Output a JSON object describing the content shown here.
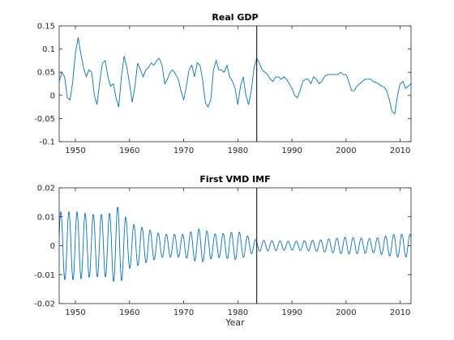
{
  "figure": {
    "background": "#ffffff"
  },
  "chart_data": [
    {
      "type": "line",
      "title": "Real GDP",
      "xlabel": "",
      "ylabel": "",
      "xlim": [
        1947,
        2012
      ],
      "ylim": [
        -0.1,
        0.15
      ],
      "xticks": [
        1950,
        1960,
        1970,
        1980,
        1990,
        2000,
        2010
      ],
      "yticks": [
        -0.1,
        -0.05,
        0,
        0.05,
        0.1,
        0.15
      ],
      "ytick_labels": [
        "-0.1",
        "-0.05",
        "0",
        "0.05",
        "0.1",
        "0.15"
      ],
      "grid": false,
      "legend": "none",
      "vline_x": 1983.5,
      "series": [
        {
          "color": "#0072bd",
          "x": [
            1947,
            1947.5,
            1948,
            1948.5,
            1949,
            1949.5,
            1950,
            1950.5,
            1951,
            1951.5,
            1952,
            1952.5,
            1953,
            1953.5,
            1954,
            1954.5,
            1955,
            1955.5,
            1956,
            1956.5,
            1957,
            1957.5,
            1958,
            1958.5,
            1959,
            1959.5,
            1960,
            1960.5,
            1961,
            1961.5,
            1962,
            1962.5,
            1963,
            1963.5,
            1964,
            1964.5,
            1965,
            1965.5,
            1966,
            1966.5,
            1967,
            1967.5,
            1968,
            1968.5,
            1969,
            1969.5,
            1970,
            1970.5,
            1971,
            1971.5,
            1972,
            1972.5,
            1973,
            1973.5,
            1974,
            1974.5,
            1975,
            1975.5,
            1976,
            1976.5,
            1977,
            1977.5,
            1978,
            1978.5,
            1979,
            1979.5,
            1980,
            1980.5,
            1981,
            1981.5,
            1982,
            1982.5,
            1983,
            1983.5,
            1984,
            1984.5,
            1985,
            1985.5,
            1986,
            1986.5,
            1987,
            1987.5,
            1988,
            1988.5,
            1989,
            1989.5,
            1990,
            1990.5,
            1991,
            1991.5,
            1992,
            1992.5,
            1993,
            1993.5,
            1994,
            1994.5,
            1995,
            1995.5,
            1996,
            1996.5,
            1997,
            1997.5,
            1998,
            1998.5,
            1999,
            1999.5,
            2000,
            2000.5,
            2001,
            2001.5,
            2002,
            2002.5,
            2003,
            2003.5,
            2004,
            2004.5,
            2005,
            2005.5,
            2006,
            2006.5,
            2007,
            2007.5,
            2008,
            2008.5,
            2009,
            2009.5,
            2010,
            2010.5,
            2011,
            2011.5,
            2012
          ],
          "y": [
            0.03,
            0.05,
            0.04,
            -0.005,
            -0.01,
            0.03,
            0.09,
            0.125,
            0.09,
            0.06,
            0.04,
            0.055,
            0.05,
            0.0,
            -0.02,
            0.03,
            0.07,
            0.075,
            0.04,
            0.02,
            0.025,
            -0.005,
            -0.025,
            0.04,
            0.085,
            0.06,
            0.025,
            -0.015,
            0.02,
            0.07,
            0.055,
            0.04,
            0.055,
            0.06,
            0.07,
            0.065,
            0.075,
            0.08,
            0.065,
            0.025,
            0.035,
            0.05,
            0.055,
            0.045,
            0.035,
            0.01,
            -0.01,
            0.02,
            0.055,
            0.065,
            0.04,
            0.07,
            0.065,
            0.035,
            -0.015,
            -0.025,
            -0.01,
            0.055,
            0.075,
            0.055,
            0.055,
            0.05,
            0.065,
            0.04,
            0.03,
            0.015,
            -0.02,
            0.02,
            0.04,
            0.0,
            -0.02,
            0.01,
            0.06,
            0.08,
            0.07,
            0.055,
            0.05,
            0.045,
            0.035,
            0.03,
            0.04,
            0.04,
            0.035,
            0.04,
            0.035,
            0.025,
            0.015,
            0.0,
            -0.005,
            0.01,
            0.03,
            0.035,
            0.035,
            0.025,
            0.04,
            0.035,
            0.025,
            0.03,
            0.04,
            0.045,
            0.045,
            0.045,
            0.045,
            0.045,
            0.05,
            0.045,
            0.045,
            0.03,
            0.01,
            0.01,
            0.02,
            0.025,
            0.03,
            0.035,
            0.035,
            0.035,
            0.03,
            0.028,
            0.025,
            0.02,
            0.018,
            0.01,
            -0.01,
            -0.035,
            -0.04,
            0.0,
            0.025,
            0.03,
            0.015,
            0.02,
            0.025
          ]
        }
      ]
    },
    {
      "type": "line",
      "title": "First VMD IMF",
      "xlabel": "Year",
      "ylabel": "",
      "xlim": [
        1947,
        2012
      ],
      "ylim": [
        -0.02,
        0.02
      ],
      "xticks": [
        1950,
        1960,
        1970,
        1980,
        1990,
        2000,
        2010
      ],
      "yticks": [
        -0.02,
        -0.01,
        0,
        0.01,
        0.02
      ],
      "ytick_labels": [
        "-0.02",
        "-0.01",
        "0",
        "0.01",
        "0.02"
      ],
      "grid": false,
      "legend": "none",
      "vline_x": 1983.5,
      "series": [
        {
          "color": "#0072bd",
          "oscillation": {
            "x_start": 1947,
            "x_end": 2012,
            "period_years": 1.5,
            "envelope_x": [
              1947,
              1950,
              1953,
              1956,
              1958,
              1960,
              1963,
              1966,
              1970,
              1973,
              1976,
              1980,
              1983.5,
              1990,
              1995,
              2000,
              2005,
              2009,
              2012
            ],
            "envelope_amplitude": [
              0.012,
              0.012,
              0.011,
              0.011,
              0.014,
              0.008,
              0.006,
              0.004,
              0.004,
              0.006,
              0.004,
              0.005,
              0.002,
              0.0015,
              0.002,
              0.003,
              0.0025,
              0.004,
              0.004
            ]
          }
        }
      ]
    }
  ]
}
